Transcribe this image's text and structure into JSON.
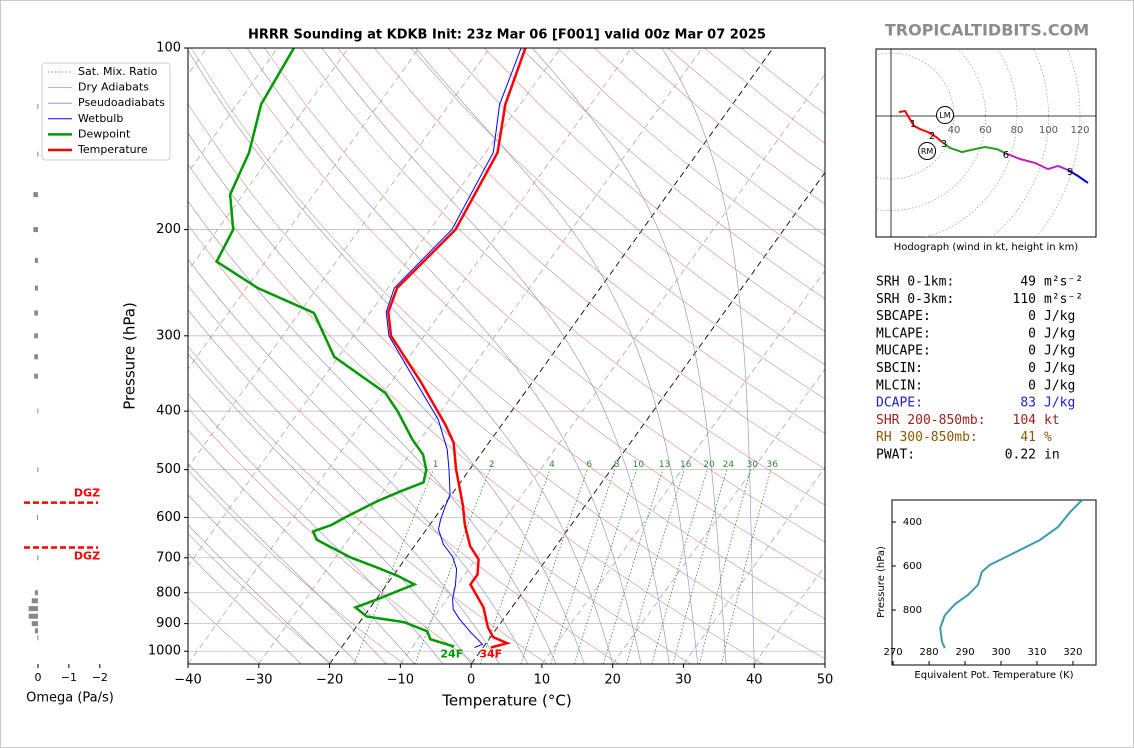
{
  "site": "TROPICALTIDBITS.COM",
  "chart_data": [
    {
      "type": "skewt",
      "title": "HRRR Sounding at KDKB Init: 23z Mar 06 [F001] valid 00z Mar 07 2025",
      "xlabel": "Temperature (°C)",
      "ylabel": "Pressure (hPa)",
      "xlim": [
        -40,
        50
      ],
      "ylim": [
        1050,
        100
      ],
      "log_y": true,
      "xticks": [
        {
          "value": -40,
          "label": "−40"
        },
        {
          "value": -30,
          "label": "−30"
        },
        {
          "value": -20,
          "label": "−20"
        },
        {
          "value": -10,
          "label": "−10"
        },
        0,
        10,
        20,
        30,
        40,
        50
      ],
      "yticks": [
        100,
        200,
        300,
        400,
        500,
        600,
        700,
        800,
        900,
        1000
      ],
      "mixing_ratios": [
        1,
        2,
        4,
        6,
        8,
        10,
        13,
        16,
        20,
        24,
        30,
        36
      ],
      "background_lines": [
        {
          "name": "Sat. Mix. Ratio",
          "color": "#2e8b2e"
        },
        {
          "name": "Dry Adiabats",
          "color": "#e08a8a"
        },
        {
          "name": "Pseudoadiabats",
          "color": "#8a8ac8"
        }
      ],
      "series": [
        {
          "name": "Wetbulb",
          "color": "#0000ff",
          "pressure": [
            100,
            124,
            149,
            200,
            250,
            274,
            300,
            357,
            413,
            463,
            500,
            550,
            575,
            605,
            628,
            665,
            696,
            731,
            775,
            820,
            852,
            885,
            930,
            974,
            986
          ],
          "values": [
            -55.6,
            -52.9,
            -48.9,
            -46.9,
            -49.1,
            -47.8,
            -45.0,
            -36.6,
            -29.5,
            -25.2,
            -22.9,
            -20.2,
            -19.7,
            -19.0,
            -18.3,
            -16.1,
            -13.6,
            -11.7,
            -10.3,
            -9.2,
            -8.1,
            -6.2,
            -3.3,
            -0.4,
            -1.2
          ]
        },
        {
          "name": "Dewpoint",
          "color": "#009900",
          "surface_label": "24F",
          "pressure": [
            100,
            124,
            149,
            175,
            200,
            226,
            250,
            275,
            325,
            373,
            401,
            446,
            472,
            500,
            525,
            543,
            565,
            600,
            618,
            633,
            653,
            699,
            726,
            751,
            775,
            820,
            846,
            876,
            895,
            927,
            955,
            981,
            986
          ],
          "values": [
            -87.7,
            -86.6,
            -83.4,
            -81.8,
            -77.8,
            -76.9,
            -68.4,
            -57.9,
            -50.6,
            -39.7,
            -36.0,
            -31.1,
            -28.1,
            -26.1,
            -25.2,
            -27.5,
            -29.9,
            -32.7,
            -33.9,
            -35.8,
            -34.5,
            -27.9,
            -23.2,
            -19.2,
            -16.1,
            -19.8,
            -22.1,
            -19.6,
            -13.7,
            -9.5,
            -8.3,
            -4.4,
            -4.4
          ]
        },
        {
          "name": "Temperature",
          "color": "#ff0000",
          "surface_label": "34F",
          "pressure": [
            100,
            124,
            149,
            200,
            250,
            274,
            300,
            357,
            421,
            451,
            500,
            543,
            575,
            618,
            670,
            704,
            746,
            775,
            846,
            912,
            948,
            970,
            986
          ],
          "values": [
            -55.0,
            -52.1,
            -48.3,
            -46.4,
            -48.7,
            -47.5,
            -44.7,
            -35.9,
            -28.0,
            -25.0,
            -21.9,
            -19.1,
            -17.2,
            -15.0,
            -12.1,
            -9.6,
            -8.2,
            -8.2,
            -4.0,
            -1.4,
            0.4,
            3.0,
            1.1
          ]
        }
      ]
    },
    {
      "type": "omega",
      "xlabel": "Omega (Pa/s)",
      "xlim": [
        0.5,
        -2.2
      ],
      "ylim": [
        1050,
        100
      ],
      "xticks": [
        0,
        {
          "value": -1,
          "label": "−1"
        },
        {
          "value": -2,
          "label": "−2"
        }
      ],
      "color": "#888888",
      "pressure": [
        125,
        150,
        175,
        200,
        225,
        250,
        275,
        300,
        325,
        350,
        400,
        500,
        600,
        700,
        800,
        825,
        850,
        875,
        900,
        925,
        950
      ],
      "values": [
        0.02,
        0.02,
        0.15,
        0.15,
        0.1,
        0.1,
        0.12,
        0.12,
        0.12,
        0.12,
        0.02,
        0.02,
        0.03,
        0.02,
        0.1,
        0.2,
        0.3,
        0.3,
        0.2,
        0.1,
        0.02
      ],
      "dgz_labels": [
        "DGZ",
        "DGZ"
      ],
      "dgz_pressures": [
        567,
        673
      ],
      "dgz_color": "#ff0000"
    },
    {
      "type": "hodograph",
      "xlabel": "Hodograph (wind in kt, height in km)",
      "rings": [
        40,
        60,
        80,
        100,
        120
      ],
      "series": [
        {
          "color": "#ff0000",
          "u": [
            5.1,
            8.9,
            10.8,
            14.6,
            18.4,
            23.5,
            28.6,
            32.4
          ],
          "v": [
            2.5,
            3.2,
            0,
            -6.3,
            -8.3,
            -10.2,
            -13.3,
            -16.5
          ]
        },
        {
          "color": "#22a022",
          "u": [
            32.4,
            37.5,
            45.1,
            53.3,
            59.7,
            67.3,
            72.4
          ],
          "v": [
            -16.5,
            -20.3,
            -22.9,
            -21.0,
            -19.7,
            -21.0,
            -23.5
          ]
        },
        {
          "color": "#c020c0",
          "u": [
            72.4,
            81.9,
            91.4,
            99.7,
            106.0,
            112.4
          ],
          "v": [
            -23.5,
            -27.3,
            -29.8,
            -33.7,
            -31.7,
            -34.3
          ]
        },
        {
          "color": "#0000ee",
          "u": [
            112.4,
            118.7,
            125.1
          ],
          "v": [
            -34.3,
            -38.1,
            -42.5
          ]
        }
      ],
      "height_labels": [
        {
          "height": 1,
          "u": 12.7,
          "v": -3.8
        },
        {
          "height": 2,
          "u": 24.8,
          "v": -11.4
        },
        {
          "height": 3,
          "u": 32.4,
          "v": -16.5
        },
        {
          "height": 6,
          "u": 71.7,
          "v": -23.5
        },
        {
          "height": 9,
          "u": 112.4,
          "v": -34.3
        }
      ],
      "storm_motions": [
        {
          "label": "LM",
          "u": 34.3,
          "v": 0.6
        },
        {
          "label": "RM",
          "u": 22.9,
          "v": -22.2
        }
      ]
    },
    {
      "type": "line",
      "xlabel": "Equivalent Pot. Temperature (K)",
      "ylabel": "Pressure (hPa)",
      "xlim": [
        269.7,
        326.4
      ],
      "ylim": [
        1050,
        300
      ],
      "xticks": [
        270,
        280,
        290,
        300,
        310,
        320
      ],
      "yticks": [
        400,
        600,
        800
      ],
      "color": "#3a9aae",
      "values": [
        322.5,
        319.2,
        315.8,
        310.8,
        302.5,
        296.9,
        294.7,
        293.6,
        290.8,
        287.2,
        284.4,
        283.1,
        283.6,
        284.4
      ],
      "pressure": [
        300,
        355,
        423,
        482,
        550,
        595,
        627,
        686,
        732,
        773,
        823,
        882,
        945,
        973
      ]
    }
  ],
  "indices": {
    "rows": [
      {
        "label": "SRH 0-1km:",
        "value": 49,
        "unit": "m²s⁻²",
        "color": "#000000"
      },
      {
        "label": "SRH 0-3km:",
        "value": 110,
        "unit": "m²s⁻²",
        "color": "#000000"
      },
      {
        "label": "SBCAPE:",
        "value": 0,
        "unit": "J/kg",
        "color": "#000000"
      },
      {
        "label": "MLCAPE:",
        "value": 0,
        "unit": "J/kg",
        "color": "#000000"
      },
      {
        "label": "MUCAPE:",
        "value": 0,
        "unit": "J/kg",
        "color": "#000000"
      },
      {
        "label": "SBCIN:",
        "value": 0,
        "unit": "J/kg",
        "color": "#000000"
      },
      {
        "label": "MLCIN:",
        "value": 0,
        "unit": "J/kg",
        "color": "#000000"
      },
      {
        "label": "DCAPE:",
        "value": 83,
        "unit": "J/kg",
        "color": "#2020d0"
      },
      {
        "label": "SHR 200-850mb:",
        "value": 104,
        "unit": "kt",
        "color": "#a02020"
      },
      {
        "label": "RH 300-850mb:",
        "value": 41,
        "unit": "%",
        "color": "#8a5a00"
      },
      {
        "label": "PWAT:",
        "value": 0.22,
        "unit": "in",
        "color": "#000000"
      }
    ]
  }
}
